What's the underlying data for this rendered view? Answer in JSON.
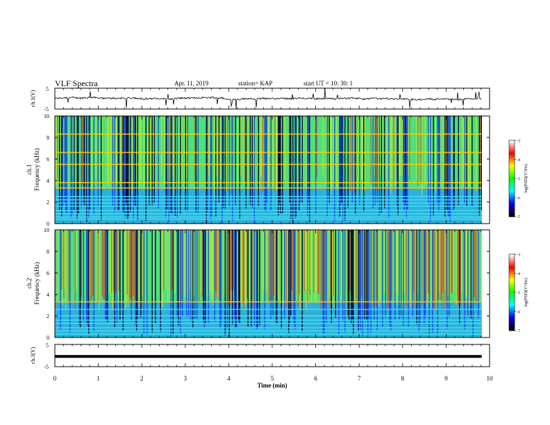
{
  "header": {
    "title": "VLF Spectra",
    "date": "Apr. 11, 2019",
    "station": "station= KAP",
    "start_ut": "start UT =  10: 30: 1"
  },
  "panels": {
    "ch1_wave": {
      "ylabel": "ch.1(V)",
      "ytick_top": "5",
      "ytick_bottom": "-5"
    },
    "ch1_spec": {
      "ylabel_line1": "ch.1",
      "ylabel_line2": "Frequency (kHz)"
    },
    "ch2_spec": {
      "ylabel_line1": "ch.2",
      "ylabel_line2": "Frequency (kHz)"
    },
    "ch3_wave": {
      "ylabel": "ch.3(V)",
      "ytick_top": "5",
      "ytick_bottom": "-5"
    }
  },
  "colorbar": {
    "label": "log(PSD)(V²/Hz)",
    "ticks": [
      "-3",
      "-4",
      "-5",
      "-6",
      "-7"
    ],
    "colors": [
      "#ffffff",
      "#ff0000",
      "#ffff00",
      "#00ff00",
      "#00ffff",
      "#0000ff",
      "#000000"
    ]
  },
  "chart_data": [
    {
      "type": "line",
      "name": "ch1-waveform",
      "ylabel": "ch.1(V)",
      "xlim": [
        0,
        10
      ],
      "ylim": [
        -5,
        5
      ],
      "x_data_end": 9.82,
      "baseline_approx": 0
    },
    {
      "type": "heatmap",
      "name": "ch1-spectrogram",
      "ylabel": "Frequency (kHz)",
      "channel": "ch.1",
      "xlim": [
        0,
        10
      ],
      "ylim": [
        0,
        10
      ],
      "yticks": [
        "0",
        "2",
        "4",
        "6",
        "8",
        "10"
      ],
      "x_data_end": 9.82,
      "value_range": [
        -7,
        -3
      ],
      "horizontal_lines_khz": [
        0.4,
        0.6,
        0.9,
        1.2,
        1.6,
        1.9,
        2.2,
        2.5,
        3.3,
        3.8,
        5.5,
        6.6,
        8.3
      ]
    },
    {
      "type": "heatmap",
      "name": "ch2-spectrogram",
      "ylabel": "Frequency (kHz)",
      "channel": "ch.2",
      "xlim": [
        0,
        10
      ],
      "ylim": [
        0,
        10
      ],
      "yticks": [
        "0",
        "2",
        "4",
        "6",
        "8",
        "10"
      ],
      "x_data_end": 9.82,
      "value_range": [
        -7,
        -3
      ],
      "horizontal_lines_khz": [
        0.3,
        0.6,
        0.9,
        1.3,
        1.6,
        2.0,
        2.6,
        3.3
      ]
    },
    {
      "type": "line",
      "name": "ch3-waveform",
      "ylabel": "ch.3(V)",
      "xlim": [
        0,
        10
      ],
      "ylim": [
        -5,
        5
      ],
      "x_data_end": 9.82,
      "constant_value": -0.4
    }
  ],
  "xaxis": {
    "label": "Time (min)",
    "ticks": [
      "0",
      "1",
      "2",
      "3",
      "4",
      "5",
      "6",
      "7",
      "8",
      "9",
      "10"
    ]
  }
}
